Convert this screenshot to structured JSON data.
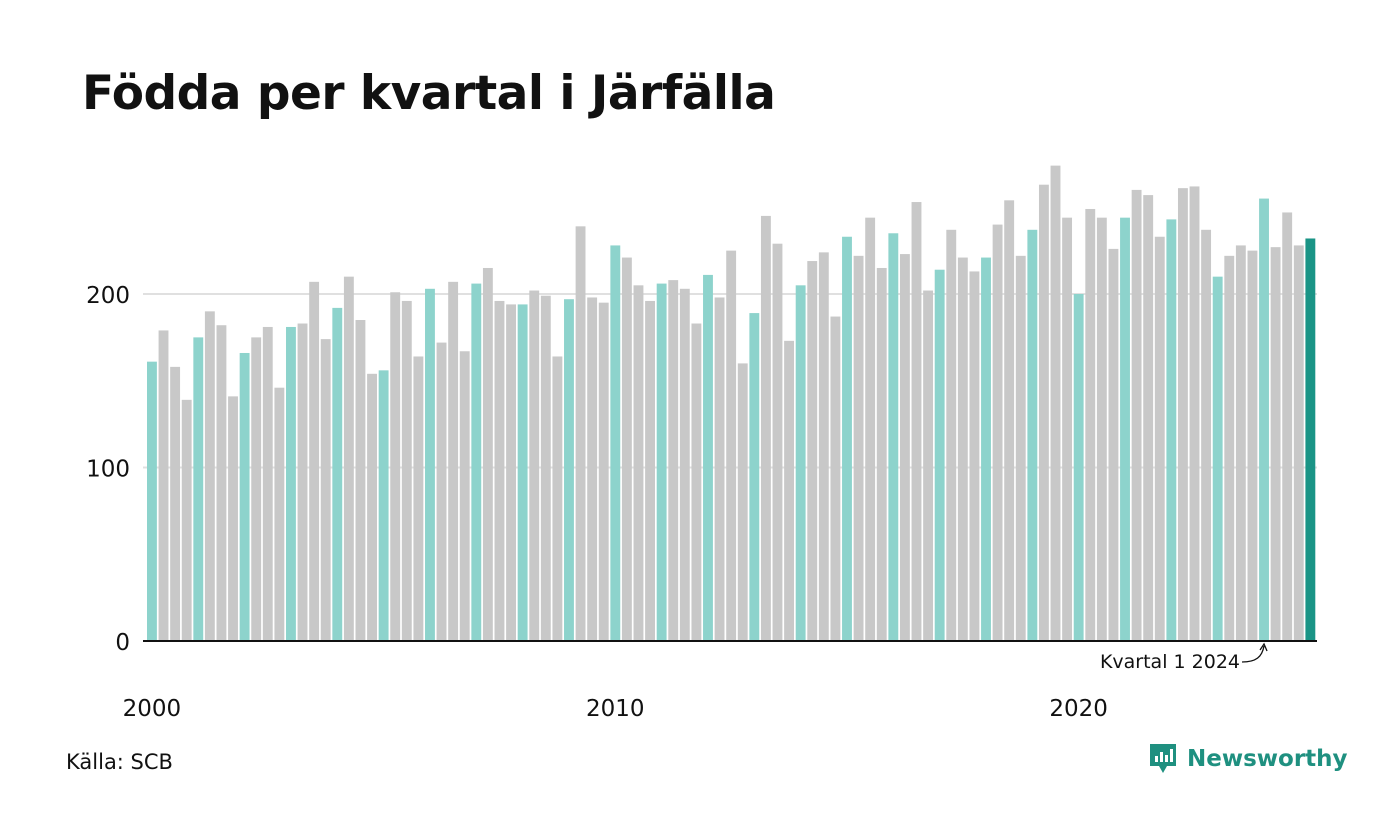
{
  "title": "Födda per kvartal i Järfälla",
  "source": "Källa: SCB",
  "brand": {
    "name": "Newsworthy",
    "icon": "newsworthy-logo-icon"
  },
  "colors": {
    "q1": "#8dd3cc",
    "other": "#c8c8c8",
    "latest": "#1a9486",
    "grid": "#e0e0e0",
    "axis": "#111111",
    "brand": "#1f9080"
  },
  "chart_data": {
    "type": "bar",
    "title": "Födda per kvartal i Järfälla",
    "xlabel": "",
    "ylabel": "",
    "ylim": [
      0,
      280
    ],
    "yticks": [
      0,
      100,
      200
    ],
    "xtick_labels": [
      "2000",
      "2010",
      "2020"
    ],
    "grid": true,
    "start_period": "2000 Q1",
    "annotation": {
      "text": "Kvartal 1 2024",
      "target": "2024 Q1"
    },
    "values": [
      161,
      179,
      158,
      139,
      175,
      190,
      182,
      141,
      166,
      175,
      181,
      146,
      181,
      183,
      207,
      174,
      192,
      210,
      185,
      154,
      156,
      201,
      196,
      164,
      203,
      172,
      207,
      167,
      206,
      215,
      196,
      194,
      194,
      202,
      199,
      164,
      197,
      239,
      198,
      195,
      228,
      221,
      205,
      196,
      206,
      208,
      203,
      183,
      211,
      198,
      225,
      160,
      189,
      245,
      229,
      173,
      205,
      219,
      224,
      187,
      233,
      222,
      244,
      215,
      235,
      223,
      253,
      202,
      214,
      237,
      221,
      213,
      221,
      240,
      254,
      222,
      237,
      263,
      274,
      244,
      200,
      249,
      244,
      226,
      244,
      260,
      257,
      233,
      243,
      261,
      262,
      237,
      210,
      222,
      228,
      225,
      255,
      227,
      247,
      228,
      232
    ]
  }
}
